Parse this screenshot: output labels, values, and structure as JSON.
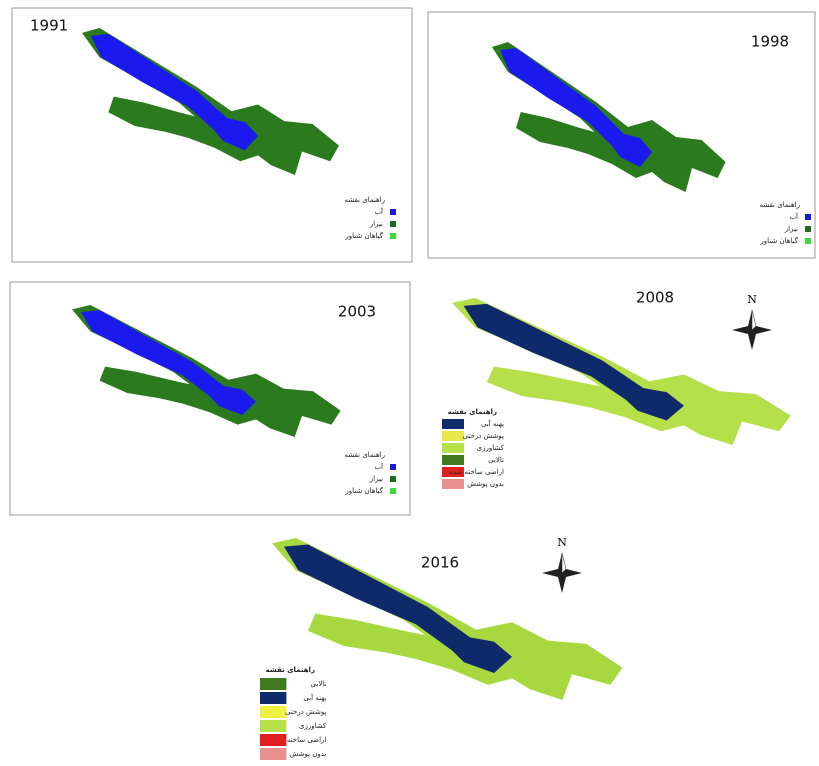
{
  "panels": [
    {
      "year": "1991",
      "legend_title": "راهنمای نقشه",
      "items": [
        {
          "label": "آب",
          "color": "#1a1adf"
        },
        {
          "label": "نیزار",
          "color": "#1f6b1f"
        },
        {
          "label": "گیاهان شناور",
          "color": "#3fd63f"
        }
      ]
    },
    {
      "year": "1998",
      "legend_title": "راهنمای نقشه",
      "items": [
        {
          "label": "آب",
          "color": "#1a1adf"
        },
        {
          "label": "نیزار",
          "color": "#1f6b1f"
        },
        {
          "label": "گیاهان شناور",
          "color": "#3fd63f"
        }
      ]
    },
    {
      "year": "2003",
      "legend_title": "راهنمای نقشه",
      "items": [
        {
          "label": "آب",
          "color": "#1a1adf"
        },
        {
          "label": "نیزار",
          "color": "#1f6b1f"
        },
        {
          "label": "گیاهان شناور",
          "color": "#3fd63f"
        }
      ]
    },
    {
      "year": "2008",
      "legend_title": "راهنمای نقشه",
      "compass": "N",
      "items": [
        {
          "label": "پهنه آبی",
          "color": "#0f2a6b"
        },
        {
          "label": "پوشش درختی",
          "color": "#e8e84a"
        },
        {
          "label": "کشاورزی",
          "color": "#b6e04a"
        },
        {
          "label": "تالابی",
          "color": "#3f7a1f"
        },
        {
          "label": "اراضی ساخته شده",
          "color": "#e02020"
        },
        {
          "label": "بدون پوشش",
          "color": "#e89090"
        }
      ]
    },
    {
      "year": "2016",
      "legend_title": "راهنمای نقشه",
      "compass": "N",
      "items": [
        {
          "label": "تالابی",
          "color": "#3f7a1f"
        },
        {
          "label": "پهنه آبی",
          "color": "#0f2a6b"
        },
        {
          "label": "پوشش درختی",
          "color": "#f0f040"
        },
        {
          "label": "کشاورزی",
          "color": "#b6e04a"
        },
        {
          "label": "اراضی ساخته",
          "color": "#e02020"
        },
        {
          "label": "بدون پوشش",
          "color": "#e89090"
        }
      ]
    }
  ]
}
